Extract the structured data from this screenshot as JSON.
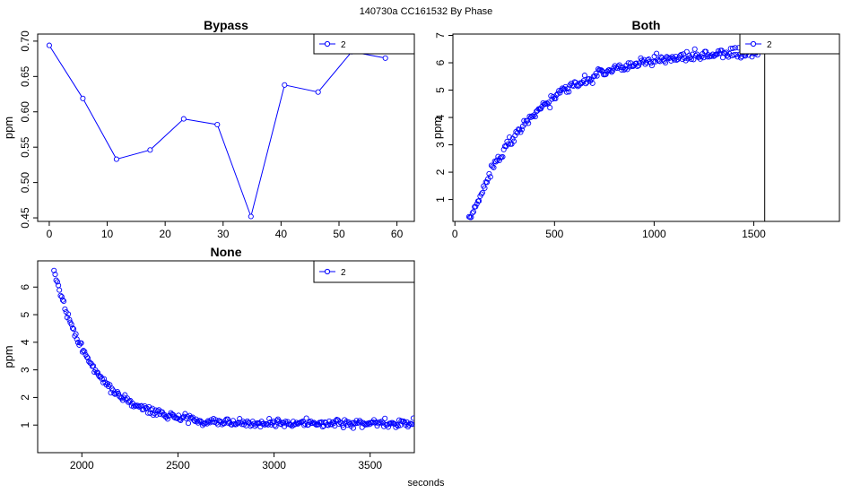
{
  "page_title": "140730a    CC161532   By Phase",
  "shared_xlabel": "seconds",
  "series_color": "#0000ff",
  "chart_data": [
    {
      "id": "bypass",
      "type": "line",
      "title": "Bypass",
      "ylabel": "ppm",
      "xlabel": "",
      "xlim": [
        -2,
        63
      ],
      "ylim": [
        0.445,
        0.71
      ],
      "xticks": [
        0,
        10,
        20,
        30,
        40,
        50,
        60
      ],
      "yticks": [
        0.45,
        0.5,
        0.55,
        0.6,
        0.65,
        0.7
      ],
      "ytick_labels": [
        "0.45",
        "0.50",
        "0.55",
        "0.60",
        "0.65",
        "0.70"
      ],
      "legend": {
        "position": "top-right",
        "label": "2"
      },
      "series": [
        {
          "name": "2",
          "x": [
            0,
            5.8,
            11.6,
            17.4,
            23.2,
            29.0,
            34.8,
            40.6,
            46.4,
            52.2,
            58.0
          ],
          "y": [
            0.694,
            0.619,
            0.533,
            0.546,
            0.59,
            0.582,
            0.452,
            0.638,
            0.628,
            0.685,
            0.676
          ]
        }
      ]
    },
    {
      "id": "both",
      "type": "scatter",
      "title": "Both",
      "ylabel": "ppm",
      "xlabel": "",
      "xlim": [
        -10,
        1930
      ],
      "ylim": [
        0.2,
        7.05
      ],
      "xticks": [
        0,
        500,
        1000,
        1500
      ],
      "yticks": [
        1,
        2,
        3,
        4,
        5,
        6,
        7
      ],
      "ytick_labels": [
        "1",
        "2",
        "3",
        "4",
        "5",
        "6",
        "7"
      ],
      "vline": 1555,
      "legend": {
        "position": "top-right",
        "label": "2"
      },
      "series": [
        {
          "name": "2",
          "model": "saturating",
          "x_start": 65,
          "x_end": 1525,
          "count": 260,
          "y0": 0.1,
          "ymax": 6.45,
          "tau": 330,
          "noise": 0.13
        }
      ]
    },
    {
      "id": "none",
      "type": "scatter",
      "title": "None",
      "ylabel": "ppm",
      "xlabel": "",
      "xlim": [
        1770,
        3730
      ],
      "ylim": [
        0.0,
        6.95
      ],
      "xticks": [
        2000,
        2500,
        3000,
        3500
      ],
      "yticks": [
        1,
        2,
        3,
        4,
        5,
        6
      ],
      "ytick_labels": [
        "1",
        "2",
        "3",
        "4",
        "5",
        "6"
      ],
      "legend": {
        "position": "top-right",
        "label": "2"
      },
      "series": [
        {
          "name": "2",
          "model": "decay",
          "x_start": 1855,
          "x_end": 3725,
          "count": 330,
          "yinf": 1.05,
          "amp": 5.6,
          "tau": 200,
          "noise": 0.1
        }
      ]
    }
  ]
}
